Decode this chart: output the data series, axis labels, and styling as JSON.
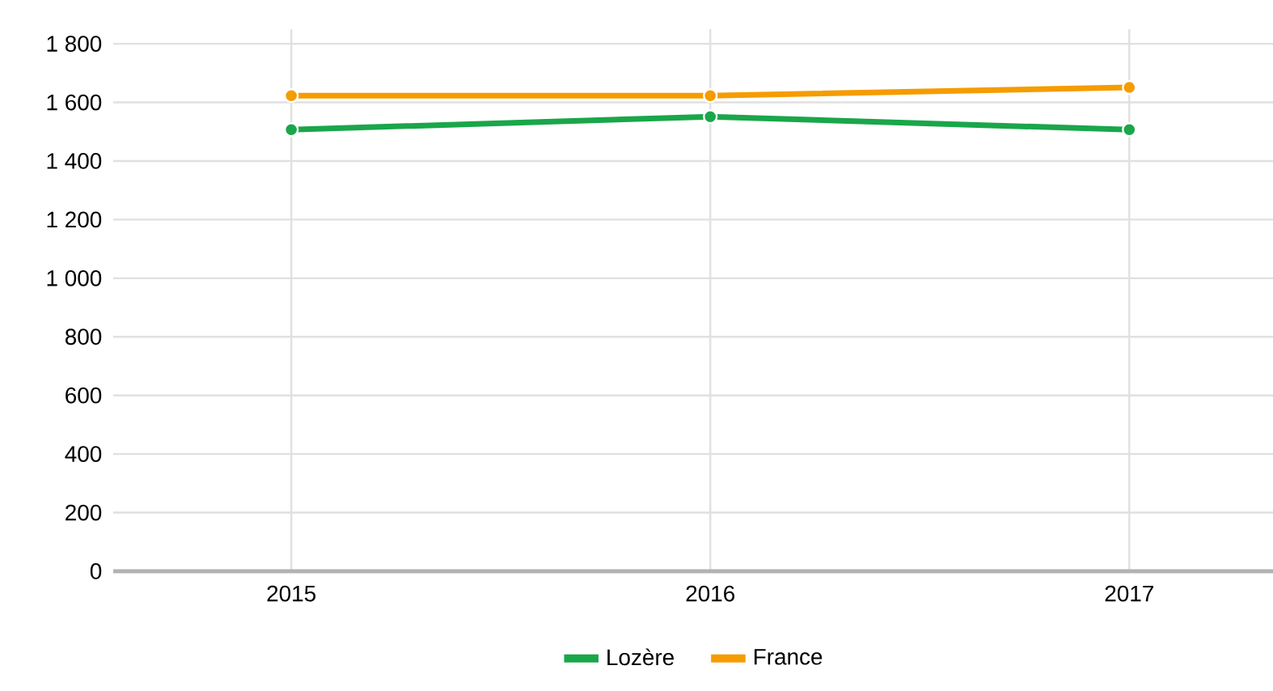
{
  "chart_data": {
    "type": "line",
    "categories": [
      "2015",
      "2016",
      "2017"
    ],
    "series": [
      {
        "name": "Lozère",
        "color": "#1aa64a",
        "values": [
          1507,
          1551,
          1507
        ]
      },
      {
        "name": "France",
        "color": "#f59c00",
        "values": [
          1623,
          1623,
          1651
        ]
      }
    ],
    "ylim": [
      0,
      1850
    ],
    "yticks": [
      0,
      200,
      400,
      600,
      800,
      {
        "value": 1000,
        "label": "1 000"
      },
      {
        "value": 1200,
        "label": "1 200"
      },
      {
        "value": 1400,
        "label": "1 400"
      },
      {
        "value": 1600,
        "label": "1 600"
      },
      {
        "value": 1800,
        "label": "1 800"
      }
    ],
    "grid": true,
    "legend": "bottom",
    "marker": "circle",
    "line_style": "solid"
  }
}
